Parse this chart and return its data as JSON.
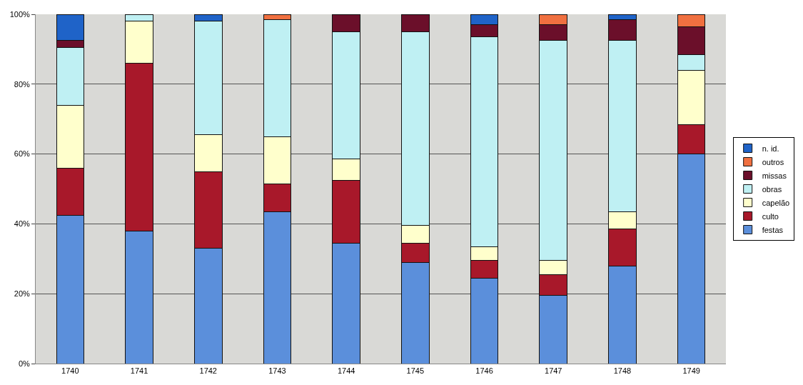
{
  "chart_data": {
    "type": "bar",
    "stacked": true,
    "categories": [
      "1740",
      "1741",
      "1742",
      "1743",
      "1744",
      "1745",
      "1746",
      "1747",
      "1748",
      "1749"
    ],
    "series": [
      {
        "name": "festas",
        "color": "#5b8fdb",
        "values": [
          42.5,
          38,
          33,
          43.5,
          34.5,
          29,
          24.5,
          19.5,
          28,
          60
        ]
      },
      {
        "name": "culto",
        "color": "#a8182a",
        "values": [
          13.5,
          48,
          22,
          8,
          18,
          5.5,
          5,
          6,
          10.5,
          8.5
        ]
      },
      {
        "name": "capelão",
        "color": "#ffffcc",
        "values": [
          18,
          12,
          10.5,
          13.5,
          6,
          5,
          4,
          4,
          5,
          15.5
        ]
      },
      {
        "name": "obras",
        "color": "#bff0f3",
        "values": [
          16.5,
          2,
          32.5,
          33.5,
          36.5,
          55.5,
          60,
          63,
          49,
          4.5
        ]
      },
      {
        "name": "missas",
        "color": "#6b0f2a",
        "values": [
          2,
          null,
          null,
          null,
          5,
          5,
          3.5,
          4.5,
          6,
          8
        ]
      },
      {
        "name": "outros",
        "color": "#f07040",
        "values": [
          null,
          null,
          null,
          1.5,
          null,
          null,
          null,
          3,
          null,
          3.5
        ]
      },
      {
        "name": "n. id.",
        "color": "#1f63c8",
        "values": [
          7.5,
          null,
          2,
          null,
          null,
          null,
          3,
          null,
          1.5,
          null
        ]
      }
    ],
    "ylim": [
      0,
      100
    ],
    "yticks": [
      {
        "value": 0,
        "label": "0%"
      },
      {
        "value": 20,
        "label": "20%"
      },
      {
        "value": 40,
        "label": "40%"
      },
      {
        "value": 60,
        "label": "60%"
      },
      {
        "value": 80,
        "label": "80%"
      },
      {
        "value": 100,
        "label": "100%"
      }
    ],
    "grid": "y",
    "legend": "right"
  }
}
